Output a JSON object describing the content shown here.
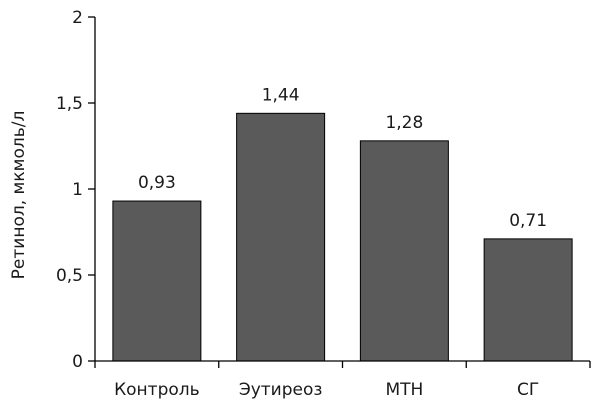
{
  "chart_data": {
    "type": "bar",
    "categories": [
      "Контроль",
      "Эутиреоз",
      "МТН",
      "СГ"
    ],
    "values": [
      0.93,
      1.44,
      1.28,
      0.71
    ],
    "data_labels": [
      "0,93",
      "1,44",
      "1,28",
      "0,71"
    ],
    "ylabel": "Ретинол, мкмоль/л",
    "ylim": [
      0,
      2
    ],
    "yticks": [
      0,
      0.5,
      1,
      1.5,
      2
    ],
    "ytick_labels": [
      "0",
      "0,5",
      "1",
      "1,5",
      "2"
    ],
    "grid": false,
    "legend": "none",
    "bar_color": "#5a5a5a"
  }
}
